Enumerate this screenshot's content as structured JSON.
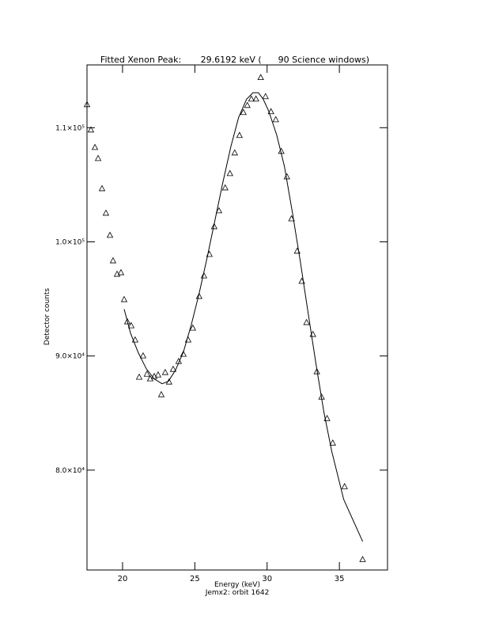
{
  "chart_data": {
    "type": "scatter",
    "title": "Fitted Xenon Peak:       29.6192 keV (      90 Science windows)",
    "xlabel": "Energy (keV)",
    "subtitle": "Jemx2: orbit 1642",
    "ylabel": "Detector counts",
    "color": "#000000",
    "xlim": [
      17.54,
      38.33
    ],
    "ylim": [
      71250,
      115500
    ],
    "xticks": [
      20,
      25,
      30,
      35
    ],
    "yticks": [
      {
        "value": 80000,
        "label": "8.0×10⁴"
      },
      {
        "value": 90000,
        "label": "9.0×10⁴"
      },
      {
        "value": 100000,
        "label": "1.0×10⁵"
      },
      {
        "value": 110000,
        "label": "1.1×10⁵"
      }
    ],
    "series": [
      {
        "type": "scatter",
        "x": [
          17.54,
          17.81,
          18.09,
          18.31,
          18.58,
          18.85,
          19.13,
          19.34,
          19.62,
          19.89,
          20.11,
          20.33,
          20.6,
          20.87,
          21.15,
          21.42,
          21.69,
          21.91,
          22.19,
          22.46,
          22.68,
          22.95,
          23.22,
          23.5,
          23.88,
          24.21,
          24.54,
          24.86,
          25.3,
          25.63,
          26.01,
          26.34,
          26.67,
          27.1,
          27.43,
          27.76,
          28.09,
          28.36,
          28.63,
          28.91,
          29.23,
          29.56,
          29.89,
          30.27,
          30.6,
          30.98,
          31.37,
          31.69,
          32.08,
          32.4,
          32.73,
          33.17,
          33.44,
          33.77,
          34.15,
          34.54,
          35.36,
          36.61
        ],
        "values": [
          112010,
          109790,
          108260,
          107290,
          104650,
          102500,
          100560,
          98330,
          97150,
          97290,
          94930,
          92990,
          92640,
          91390,
          88130,
          90000,
          88400,
          87990,
          88190,
          88330,
          86600,
          88540,
          87710,
          88820,
          89510,
          90140,
          91390,
          92430,
          95210,
          97010,
          98890,
          101320,
          102710,
          104720,
          105970,
          107780,
          109310,
          111320,
          111940,
          112500,
          112500,
          114380,
          112710,
          111390,
          110690,
          107920,
          105690,
          102010,
          99170,
          96530,
          92920,
          91880,
          88610,
          86390,
          84510,
          82360,
          78540,
          72150
        ]
      },
      {
        "type": "line",
        "x": [
          20.11,
          20.55,
          21.09,
          21.64,
          22.19,
          22.73,
          23.17,
          23.66,
          24.21,
          24.75,
          25.3,
          25.85,
          26.39,
          26.94,
          27.49,
          28.03,
          28.58,
          29.02,
          29.4,
          29.73,
          30.11,
          30.66,
          31.2,
          31.75,
          32.3,
          32.84,
          33.39,
          33.93,
          34.48,
          35.3,
          36.61
        ],
        "values": [
          94100,
          92010,
          90280,
          88890,
          87990,
          87570,
          87780,
          88750,
          90350,
          92710,
          95490,
          98610,
          101880,
          105210,
          108330,
          110900,
          112500,
          113060,
          113060,
          112500,
          111460,
          109380,
          106600,
          102570,
          98260,
          93750,
          89240,
          85070,
          81600,
          77430,
          73750
        ]
      }
    ]
  }
}
